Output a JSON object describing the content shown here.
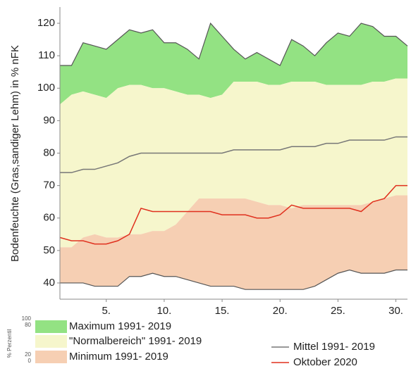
{
  "chart_data": {
    "type": "area",
    "y_label": "Bodenfeuchte (Gras,sandiger Lehm) in % nFK",
    "x": [
      1,
      2,
      3,
      4,
      5,
      6,
      7,
      8,
      9,
      10,
      11,
      12,
      13,
      14,
      15,
      16,
      17,
      18,
      19,
      20,
      21,
      22,
      23,
      24,
      25,
      26,
      27,
      28,
      29,
      30,
      31
    ],
    "xlim": [
      1,
      31
    ],
    "xticks": [
      {
        "value": 5,
        "label": "5."
      },
      {
        "value": 10,
        "label": "10."
      },
      {
        "value": 15,
        "label": "15."
      },
      {
        "value": 20,
        "label": "20."
      },
      {
        "value": 25,
        "label": "25."
      },
      {
        "value": 30,
        "label": "30."
      }
    ],
    "ylim": [
      35,
      125
    ],
    "yticks": [
      40,
      50,
      60,
      70,
      80,
      90,
      100,
      110,
      120
    ],
    "percentile_label": "% Perzentil",
    "percentile_ticks": [
      100,
      80,
      20,
      0
    ],
    "bands": [
      {
        "name": "Maximum 1991- 2019",
        "color": "#93e283",
        "values": [
          107,
          107,
          114,
          113,
          112,
          115,
          118,
          117,
          118,
          114,
          114,
          112,
          109,
          120,
          116,
          112,
          109,
          111,
          109,
          107,
          115,
          113,
          110,
          114,
          117,
          116,
          120,
          119,
          116,
          116,
          113
        ]
      },
      {
        "name": "\"Normalbereich\" 1991- 2019",
        "color": "#f6f6cc",
        "values": [
          95,
          98,
          99,
          98,
          97,
          100,
          101,
          101,
          100,
          100,
          99,
          98,
          98,
          97,
          98,
          102,
          102,
          102,
          101,
          101,
          102,
          102,
          102,
          101,
          101,
          101,
          101,
          102,
          102,
          103,
          103
        ],
        "lower": [
          51,
          51,
          54,
          55,
          54,
          54,
          55,
          55,
          56,
          56,
          58,
          62,
          66,
          66,
          66,
          66,
          66,
          65,
          64,
          64,
          63,
          64,
          64,
          64,
          64,
          64,
          64,
          65,
          66,
          67,
          67
        ]
      },
      {
        "name": "Minimum 1991- 2019",
        "color": "#f6cfb3",
        "values": [
          40,
          40,
          40,
          39,
          39,
          39,
          42,
          42,
          43,
          42,
          42,
          41,
          40,
          39,
          39,
          39,
          38,
          38,
          38,
          38,
          38,
          38,
          39,
          41,
          43,
          44,
          43,
          43,
          43,
          44,
          44
        ]
      }
    ],
    "series": [
      {
        "name": "Mittel 1991- 2019",
        "color": "#777777",
        "values": [
          74,
          74,
          75,
          75,
          76,
          77,
          79,
          80,
          80,
          80,
          80,
          80,
          80,
          80,
          80,
          81,
          81,
          81,
          81,
          81,
          82,
          82,
          82,
          83,
          83,
          84,
          84,
          84,
          84,
          85,
          85
        ]
      },
      {
        "name": "Oktober 2020",
        "color": "#e0301e",
        "values": [
          54,
          53,
          53,
          52,
          52,
          53,
          55,
          63,
          62,
          62,
          62,
          62,
          62,
          62,
          61,
          61,
          61,
          60,
          60,
          61,
          64,
          63,
          63,
          63,
          63,
          63,
          62,
          65,
          66,
          70,
          70
        ]
      }
    ]
  }
}
